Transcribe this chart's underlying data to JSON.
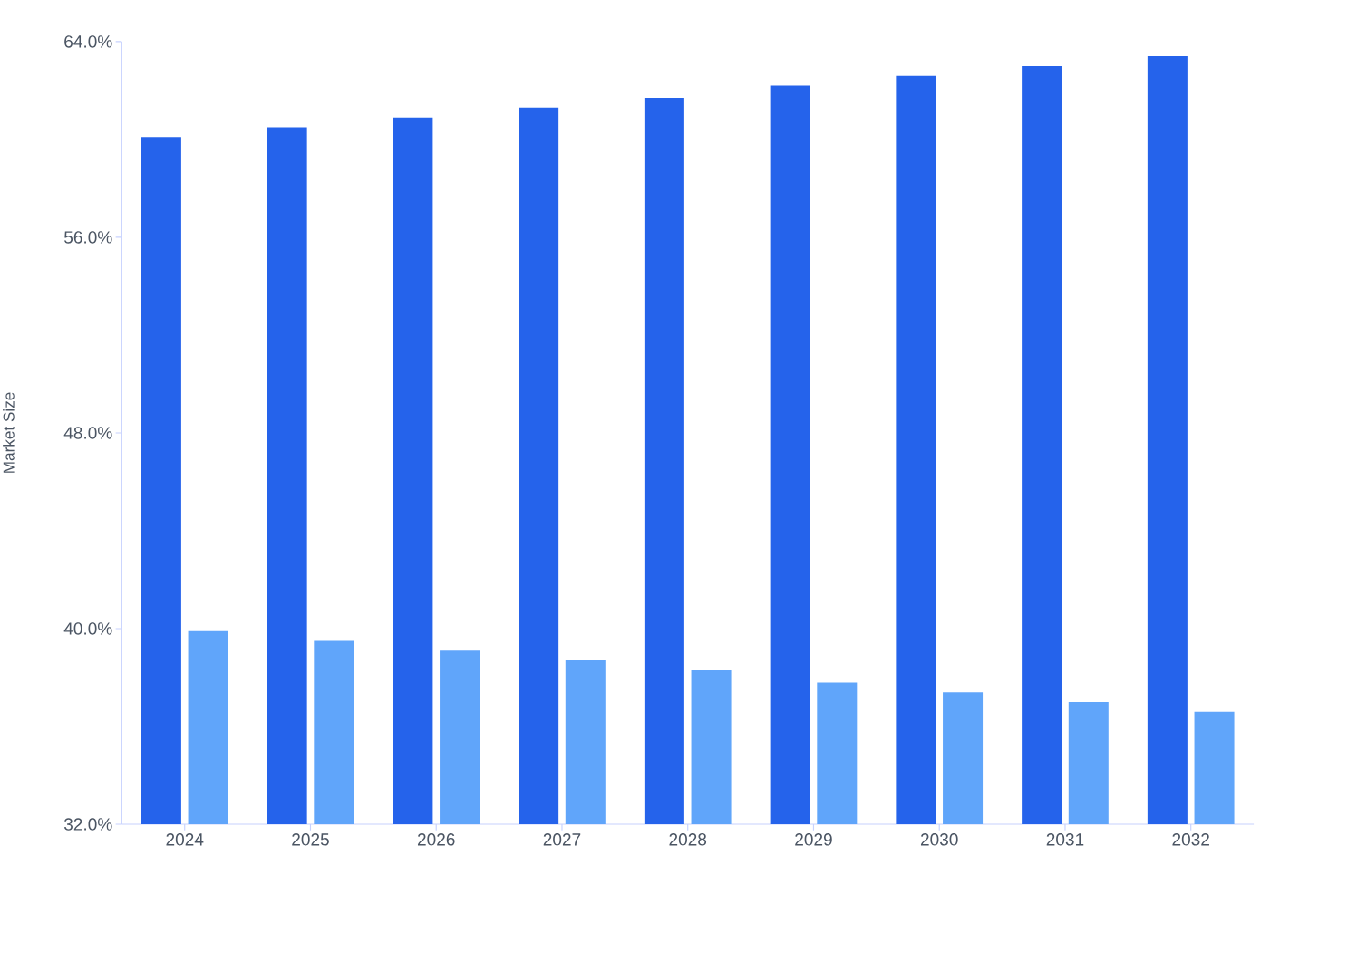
{
  "chart_data": {
    "type": "bar",
    "ylabel": "Market Size",
    "categories": [
      "2024",
      "2025",
      "2026",
      "2027",
      "2028",
      "2029",
      "2030",
      "2031",
      "2032"
    ],
    "series": [
      {
        "color": "#2563eb",
        "values": [
          60.1,
          60.5,
          60.9,
          61.3,
          61.7,
          62.2,
          62.6,
          63.0,
          63.4
        ]
      },
      {
        "color": "#60a5fa",
        "values": [
          39.9,
          39.5,
          39.1,
          38.7,
          38.3,
          37.8,
          37.4,
          37.0,
          36.6
        ]
      }
    ],
    "ylim": [
      32,
      64
    ],
    "yticks": [
      {
        "value": 32,
        "label": "32.0%"
      },
      {
        "value": 40,
        "label": "40.0%"
      },
      {
        "value": 48,
        "label": "48.0%"
      },
      {
        "value": 56,
        "label": "56.0%"
      },
      {
        "value": 64,
        "label": "64.0%"
      }
    ],
    "grid": false
  }
}
